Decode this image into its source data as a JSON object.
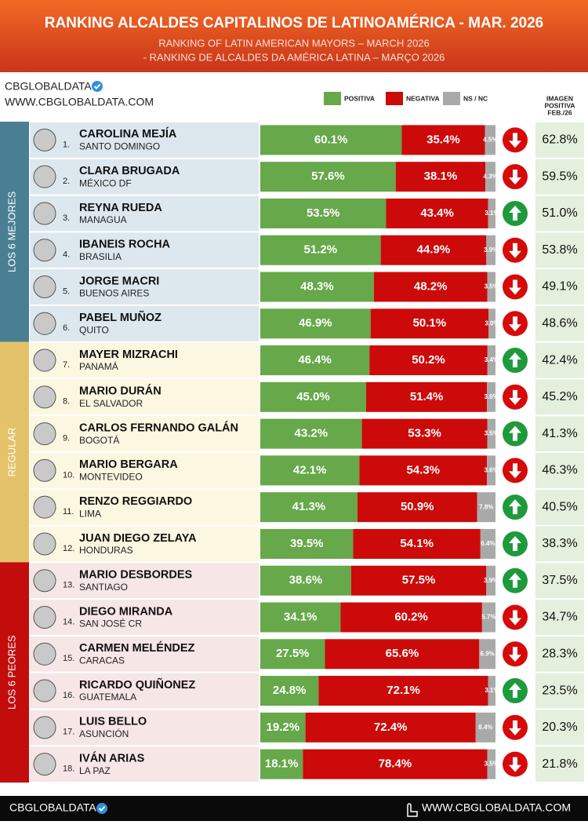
{
  "chart_data": {
    "type": "bar",
    "stacked": true,
    "orientation": "horizontal",
    "title": "RANKING ALCALDES CAPITALINOS DE LATINOAMÉRICA - MAR. 2026",
    "subtitles": [
      "RANKING OF LATIN AMERICAN MAYORS – MARCH 2026",
      "- RANKING DE ALCALDES DA AMÉRICA LATINA – MARÇO 2026"
    ],
    "brand": "CBGLOBALDATA",
    "website": "WWW.CBGLOBALDATA.COM",
    "previous_header": [
      "IMAGEN",
      "POSITIVA",
      "FEB./26"
    ],
    "xlim": [
      0,
      100
    ],
    "series": [
      {
        "name": "POSITIVA",
        "color": "#66a84a"
      },
      {
        "name": "NEGATIVA",
        "color": "#cc0a0a"
      },
      {
        "name": "NS / NC",
        "color": "#a9a9a9"
      }
    ],
    "trend_colors": {
      "up": "#1e9a3c",
      "down": "#d60a0a"
    },
    "groups": [
      {
        "label": "LOS 6 MEJORES",
        "color": "#4a7f93",
        "background": "#dce8ed",
        "mayors": [
          {
            "rank": "1.",
            "name": "CAROLINA MEJÍA",
            "city": "SANTO DOMINGO",
            "values": [
              60.1,
              35.4,
              4.5
            ],
            "value_labels": [
              "60.1%",
              "35.4%",
              "4.5%"
            ],
            "trend": "down",
            "previous": 62.8,
            "previous_label": "62.8%"
          },
          {
            "rank": "2.",
            "name": "CLARA BRUGADA",
            "city": "MÉXICO DF",
            "values": [
              57.6,
              38.1,
              4.3
            ],
            "value_labels": [
              "57.6%",
              "38.1%",
              "4.3%"
            ],
            "trend": "down",
            "previous": 59.5,
            "previous_label": "59.5%"
          },
          {
            "rank": "3.",
            "name": "REYNA RUEDA",
            "city": "MANAGUA",
            "values": [
              53.5,
              43.4,
              3.1
            ],
            "value_labels": [
              "53.5%",
              "43.4%",
              "3.1%"
            ],
            "trend": "up",
            "previous": 51.0,
            "previous_label": "51.0%"
          },
          {
            "rank": "4.",
            "name": "IBANEIS ROCHA",
            "city": "BRASILIA",
            "values": [
              51.2,
              44.9,
              3.9
            ],
            "value_labels": [
              "51.2%",
              "44.9%",
              "3.9%"
            ],
            "trend": "down",
            "previous": 53.8,
            "previous_label": "53.8%"
          },
          {
            "rank": "5.",
            "name": "JORGE MACRI",
            "city": "BUENOS AIRES",
            "values": [
              48.3,
              48.2,
              3.5
            ],
            "value_labels": [
              "48.3%",
              "48.2%",
              "3.5%"
            ],
            "trend": "down",
            "previous": 49.1,
            "previous_label": "49.1%"
          },
          {
            "rank": "6.",
            "name": "PABEL MUÑOZ",
            "city": "QUITO",
            "values": [
              46.9,
              50.1,
              3.0
            ],
            "value_labels": [
              "46.9%",
              "50.1%",
              "3.0%"
            ],
            "trend": "down",
            "previous": 48.6,
            "previous_label": "48.6%"
          }
        ]
      },
      {
        "label": "REGULAR",
        "color": "#e3c269",
        "background": "#fbf7e1",
        "mayors": [
          {
            "rank": "7.",
            "name": "MAYER MIZRACHI",
            "city": "PANAMÁ",
            "values": [
              46.4,
              50.2,
              3.4
            ],
            "value_labels": [
              "46.4%",
              "50.2%",
              "3.4%"
            ],
            "trend": "up",
            "previous": 42.4,
            "previous_label": "42.4%"
          },
          {
            "rank": "8.",
            "name": "MARIO DURÁN",
            "city": "EL SALVADOR",
            "values": [
              45.0,
              51.4,
              3.6
            ],
            "value_labels": [
              "45.0%",
              "51.4%",
              "3.6%"
            ],
            "trend": "down",
            "previous": 45.2,
            "previous_label": "45.2%"
          },
          {
            "rank": "9.",
            "name": "CARLOS FERNANDO GALÁN",
            "city": "BOGOTÁ",
            "values": [
              43.2,
              53.3,
              3.5
            ],
            "value_labels": [
              "43.2%",
              "53.3%",
              "3.5%"
            ],
            "trend": "up",
            "previous": 41.3,
            "previous_label": "41.3%"
          },
          {
            "rank": "10.",
            "name": "MARIO BERGARA",
            "city": "MONTEVIDEO",
            "values": [
              42.1,
              54.3,
              3.6
            ],
            "value_labels": [
              "42.1%",
              "54.3%",
              "3.6%"
            ],
            "trend": "down",
            "previous": 46.3,
            "previous_label": "46.3%"
          },
          {
            "rank": "11.",
            "name": "RENZO REGGIARDO",
            "city": "LIMA",
            "values": [
              41.3,
              50.9,
              7.8
            ],
            "value_labels": [
              "41.3%",
              "50.9%",
              "7.8%"
            ],
            "trend": "up",
            "previous": 40.5,
            "previous_label": "40.5%"
          },
          {
            "rank": "12.",
            "name": "JUAN DIEGO ZELAYA",
            "city": "HONDURAS",
            "values": [
              39.5,
              54.1,
              6.4
            ],
            "value_labels": [
              "39.5%",
              "54.1%",
              "6.4%"
            ],
            "trend": "up",
            "previous": 38.3,
            "previous_label": "38.3%"
          }
        ]
      },
      {
        "label": "LOS 6 PEORES",
        "color": "#c30d0d",
        "background": "#f6e6e6",
        "mayors": [
          {
            "rank": "13.",
            "name": "MARIO DESBORDES",
            "city": "SANTIAGO",
            "values": [
              38.6,
              57.5,
              3.9
            ],
            "value_labels": [
              "38.6%",
              "57.5%",
              "3.9%"
            ],
            "trend": "up",
            "previous": 37.5,
            "previous_label": "37.5%"
          },
          {
            "rank": "14.",
            "name": "DIEGO MIRANDA",
            "city": "SAN JOSÉ CR",
            "values": [
              34.1,
              60.2,
              5.7
            ],
            "value_labels": [
              "34.1%",
              "60.2%",
              "5.7%"
            ],
            "trend": "down",
            "previous": 34.7,
            "previous_label": "34.7%"
          },
          {
            "rank": "15.",
            "name": "CARMEN MELÉNDEZ",
            "city": "CARACAS",
            "values": [
              27.5,
              65.6,
              6.9
            ],
            "value_labels": [
              "27.5%",
              "65.6%",
              "6.9%"
            ],
            "trend": "down",
            "previous": 28.3,
            "previous_label": "28.3%"
          },
          {
            "rank": "16.",
            "name": "RICARDO QUIÑONEZ",
            "city": "GUATEMALA",
            "values": [
              24.8,
              72.1,
              3.1
            ],
            "value_labels": [
              "24.8%",
              "72.1%",
              "3.1%"
            ],
            "trend": "up",
            "previous": 23.5,
            "previous_label": "23.5%"
          },
          {
            "rank": "17.",
            "name": "LUIS BELLO",
            "city": "ASUNCIÓN",
            "values": [
              19.2,
              72.4,
              8.4
            ],
            "value_labels": [
              "19.2%",
              "72.4%",
              "8.4%"
            ],
            "trend": "down",
            "previous": 20.3,
            "previous_label": "20.3%"
          },
          {
            "rank": "18.",
            "name": "IVÁN ARIAS",
            "city": "LA PAZ",
            "values": [
              18.1,
              78.4,
              3.5
            ],
            "value_labels": [
              "18.1%",
              "78.4%",
              "3.5%"
            ],
            "trend": "down",
            "previous": 21.8,
            "previous_label": "21.8%"
          }
        ]
      }
    ]
  }
}
